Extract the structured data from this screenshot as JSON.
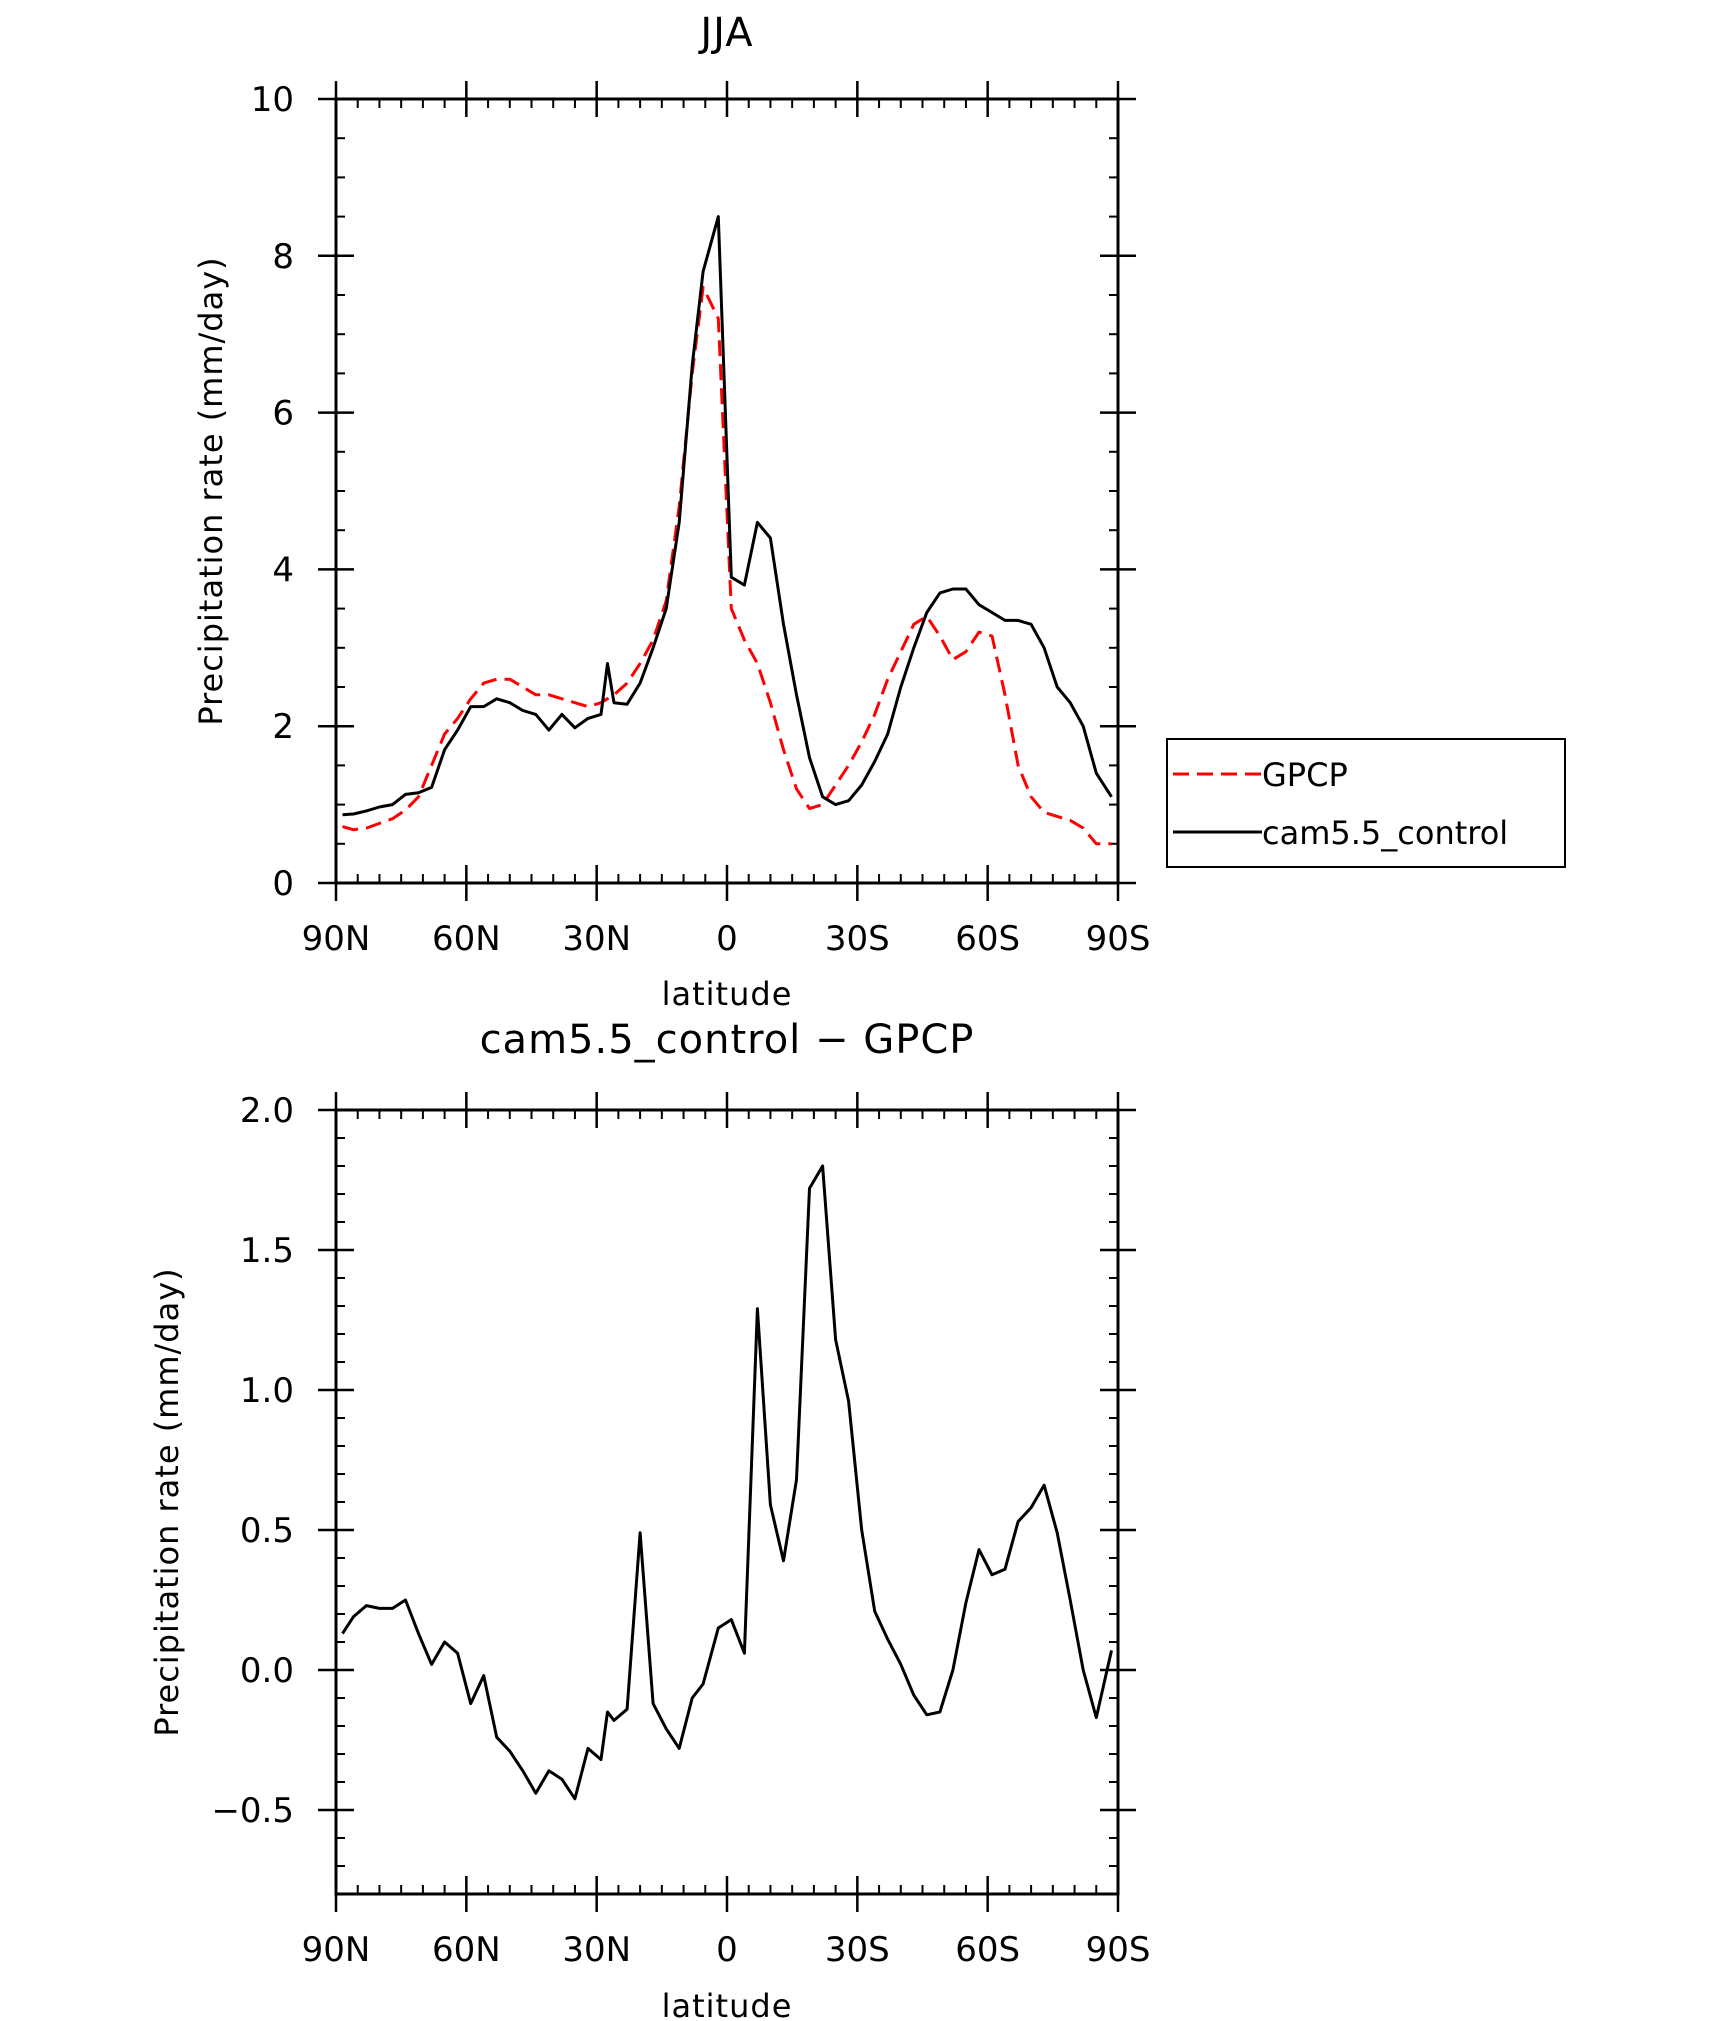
{
  "chart_data": [
    {
      "type": "line",
      "title": "JJA",
      "xlabel": "latitude",
      "ylabel": "Precipitation rate (mm/day)",
      "xlim": [
        90,
        -90
      ],
      "ylim": [
        0,
        10
      ],
      "x_ticks": [
        {
          "value": 90,
          "label": "90N"
        },
        {
          "value": 60,
          "label": "60N"
        },
        {
          "value": 30,
          "label": "30N"
        },
        {
          "value": 0,
          "label": "0"
        },
        {
          "value": -30,
          "label": "30S"
        },
        {
          "value": -60,
          "label": "60S"
        },
        {
          "value": -90,
          "label": "90S"
        }
      ],
      "y_ticks": [
        {
          "value": 0,
          "label": "0"
        },
        {
          "value": 2,
          "label": "2"
        },
        {
          "value": 4,
          "label": "4"
        },
        {
          "value": 6,
          "label": "6"
        },
        {
          "value": 8,
          "label": "8"
        },
        {
          "value": 10,
          "label": "10"
        }
      ],
      "legend_position": "outside-right",
      "series": [
        {
          "name": "GPCP",
          "color": "#ff0000",
          "dash": true,
          "x": [
            88.5,
            86,
            83,
            80,
            77,
            74,
            71,
            68,
            65,
            62,
            59,
            56,
            53,
            50,
            47,
            44,
            41,
            38,
            35,
            32,
            29,
            26,
            23,
            20,
            17,
            14,
            11,
            8,
            5.5,
            2,
            -1,
            -4,
            -7,
            -10,
            -13,
            -16,
            -19,
            -22,
            -25,
            -28,
            -31,
            -34,
            -37,
            -40,
            -43,
            -46,
            -49,
            -52,
            -55,
            -58,
            -61,
            -64,
            -67,
            -70,
            -73,
            -76,
            -79,
            -82,
            -85,
            -88.5
          ],
          "values": [
            0.72,
            0.68,
            0.7,
            0.76,
            0.82,
            0.93,
            1.1,
            1.5,
            1.9,
            2.1,
            2.35,
            2.55,
            2.6,
            2.6,
            2.5,
            2.4,
            2.4,
            2.35,
            2.3,
            2.25,
            2.3,
            2.4,
            2.55,
            2.8,
            3.1,
            3.6,
            4.8,
            6.5,
            7.6,
            7.2,
            3.5,
            3.1,
            2.8,
            2.3,
            1.7,
            1.2,
            0.95,
            1.0,
            1.25,
            1.5,
            1.8,
            2.15,
            2.6,
            2.95,
            3.3,
            3.4,
            3.15,
            2.85,
            2.95,
            3.2,
            3.15,
            2.4,
            1.5,
            1.1,
            0.9,
            0.85,
            0.8,
            0.7,
            0.5,
            0.5
          ]
        },
        {
          "name": "cam5.5_control",
          "color": "#000000",
          "dash": false,
          "x": [
            88.5,
            86,
            83,
            80,
            77,
            74,
            71,
            68,
            65,
            62,
            59,
            56,
            53,
            50,
            47,
            44,
            41,
            38,
            35,
            32,
            29,
            27.5,
            26,
            23,
            20,
            17,
            14,
            11,
            8,
            5.5,
            2,
            -1,
            -4,
            -7,
            -10,
            -13,
            -16,
            -19,
            -22,
            -25,
            -28,
            -31,
            -34,
            -37,
            -40,
            -43,
            -46,
            -49,
            -52,
            -55,
            -58,
            -61,
            -64,
            -67,
            -70,
            -73,
            -76,
            -79,
            -82,
            -85,
            -88.5
          ],
          "values": [
            0.87,
            0.88,
            0.92,
            0.97,
            1.0,
            1.13,
            1.15,
            1.22,
            1.7,
            1.95,
            2.25,
            2.25,
            2.35,
            2.3,
            2.2,
            2.15,
            1.95,
            2.15,
            1.98,
            2.1,
            2.15,
            2.8,
            2.3,
            2.28,
            2.55,
            3.0,
            3.5,
            4.6,
            6.6,
            7.8,
            8.5,
            3.9,
            3.8,
            4.6,
            4.4,
            3.3,
            2.4,
            1.6,
            1.1,
            1.0,
            1.05,
            1.25,
            1.55,
            1.9,
            2.5,
            3.0,
            3.45,
            3.7,
            3.75,
            3.75,
            3.55,
            3.45,
            3.35,
            3.35,
            3.3,
            3.0,
            2.5,
            2.3,
            2.0,
            1.4,
            1.1
          ]
        }
      ]
    },
    {
      "type": "line",
      "title": "cam5.5_control − GPCP",
      "xlabel": "latitude",
      "ylabel": "Precipitation rate (mm/day)",
      "xlim": [
        90,
        -90
      ],
      "ylim": [
        -0.8,
        2.0
      ],
      "x_ticks": [
        {
          "value": 90,
          "label": "90N"
        },
        {
          "value": 60,
          "label": "60N"
        },
        {
          "value": 30,
          "label": "30N"
        },
        {
          "value": 0,
          "label": "0"
        },
        {
          "value": -30,
          "label": "30S"
        },
        {
          "value": -60,
          "label": "60S"
        },
        {
          "value": -90,
          "label": "90S"
        }
      ],
      "y_ticks": [
        {
          "value": -0.5,
          "label": "−0.5"
        },
        {
          "value": 0.0,
          "label": "0.0"
        },
        {
          "value": 0.5,
          "label": "0.5"
        },
        {
          "value": 1.0,
          "label": "1.0"
        },
        {
          "value": 1.5,
          "label": "1.5"
        },
        {
          "value": 2.0,
          "label": "2.0"
        }
      ],
      "series": [
        {
          "name": "cam5.5_control - GPCP",
          "color": "#000000",
          "dash": false,
          "x": [
            88.5,
            86,
            83,
            80,
            77,
            74,
            71,
            68,
            65,
            62,
            59,
            56,
            53,
            50,
            47,
            44,
            41,
            38,
            35,
            32,
            29,
            27.5,
            26,
            23,
            20,
            17,
            14,
            11,
            8,
            5.5,
            2,
            -1,
            -4,
            -7,
            -10,
            -13,
            -16,
            -19,
            -22,
            -25,
            -28,
            -31,
            -34,
            -37,
            -40,
            -43,
            -46,
            -49,
            -52,
            -55,
            -58,
            -61,
            -64,
            -67,
            -70,
            -73,
            -76,
            -79,
            -82,
            -85,
            -88.5
          ],
          "values": [
            0.13,
            0.19,
            0.23,
            0.22,
            0.22,
            0.25,
            0.13,
            0.02,
            0.1,
            0.06,
            -0.12,
            -0.02,
            -0.24,
            -0.29,
            -0.36,
            -0.44,
            -0.36,
            -0.39,
            -0.46,
            -0.28,
            -0.32,
            -0.15,
            -0.18,
            -0.14,
            0.49,
            -0.12,
            -0.21,
            -0.28,
            -0.1,
            -0.05,
            0.15,
            0.18,
            0.06,
            1.29,
            0.59,
            0.39,
            0.68,
            1.72,
            1.8,
            1.18,
            0.96,
            0.5,
            0.21,
            0.11,
            0.02,
            -0.09,
            -0.16,
            -0.15,
            0.0,
            0.24,
            0.43,
            0.34,
            0.36,
            0.53,
            0.58,
            0.66,
            0.49,
            0.25,
            0.0,
            -0.17,
            0.07
          ]
        }
      ]
    }
  ],
  "legend": {
    "items": [
      {
        "label": "GPCP",
        "color": "#ff0000",
        "dash": true
      },
      {
        "label": "cam5.5_control",
        "color": "#000000",
        "dash": false
      }
    ]
  }
}
